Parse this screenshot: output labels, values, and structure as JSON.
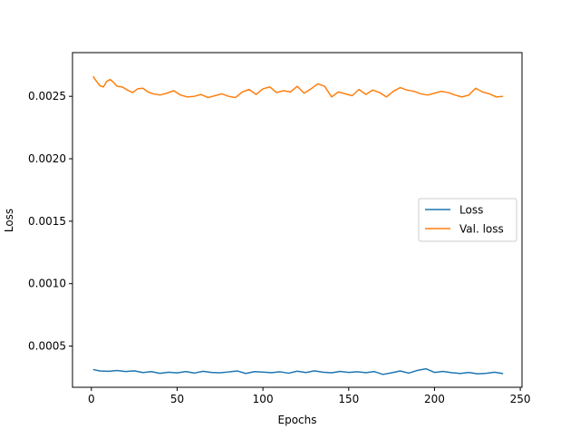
{
  "chart_data": {
    "type": "line",
    "title": "",
    "xlabel": "Epochs",
    "ylabel": "Loss",
    "xlim": [
      -11,
      251
    ],
    "ylim": [
      0.00017,
      0.00285
    ],
    "xticks": [
      0,
      50,
      100,
      150,
      200,
      250
    ],
    "xtick_labels": [
      "0",
      "50",
      "100",
      "150",
      "200",
      "250"
    ],
    "yticks": [
      0.0005,
      0.001,
      0.0015,
      0.002,
      0.0025
    ],
    "ytick_labels": [
      "0.0005",
      "0.0010",
      "0.0015",
      "0.0020",
      "0.0025"
    ],
    "grid": false,
    "legend": {
      "position": "center-right",
      "entries": [
        "Loss",
        "Val. loss"
      ]
    },
    "colors": {
      "Loss": "#1f77b4",
      "Val. loss": "#ff7f0e",
      "axis": "#000000"
    },
    "series": [
      {
        "name": "Loss",
        "x": [
          1,
          5,
          10,
          15,
          20,
          25,
          30,
          35,
          40,
          45,
          50,
          55,
          60,
          65,
          70,
          75,
          80,
          85,
          90,
          95,
          100,
          105,
          110,
          115,
          120,
          125,
          130,
          135,
          140,
          145,
          150,
          155,
          160,
          165,
          170,
          175,
          180,
          185,
          190,
          195,
          200,
          205,
          210,
          215,
          220,
          225,
          230,
          235,
          240
        ],
        "y": [
          0.000312,
          0.000301,
          0.000298,
          0.000304,
          0.000296,
          0.000302,
          0.000288,
          0.000295,
          0.000282,
          0.000291,
          0.000285,
          0.000296,
          0.000284,
          0.000298,
          0.000289,
          0.000286,
          0.000293,
          0.000301,
          0.000281,
          0.000295,
          0.000292,
          0.000287,
          0.000294,
          0.000283,
          0.000299,
          0.000288,
          0.000302,
          0.000291,
          0.000286,
          0.000297,
          0.000289,
          0.000294,
          0.000287,
          0.000296,
          0.000273,
          0.000286,
          0.000301,
          0.000284,
          0.000305,
          0.000318,
          0.000289,
          0.000297,
          0.000287,
          0.000281,
          0.000289,
          0.000278,
          0.000282,
          0.000291,
          0.00028
        ]
      },
      {
        "name": "Val. loss",
        "x": [
          1,
          3,
          5,
          7,
          9,
          11,
          13,
          15,
          18,
          21,
          24,
          27,
          30,
          33,
          36,
          40,
          44,
          48,
          52,
          56,
          60,
          64,
          68,
          72,
          76,
          80,
          84,
          88,
          92,
          96,
          100,
          104,
          108,
          112,
          116,
          120,
          124,
          128,
          132,
          136,
          140,
          144,
          148,
          152,
          156,
          160,
          164,
          168,
          172,
          176,
          180,
          184,
          188,
          192,
          196,
          200,
          204,
          208,
          212,
          216,
          220,
          224,
          228,
          232,
          236,
          240
        ],
        "y": [
          0.00266,
          0.00262,
          0.002585,
          0.002575,
          0.00262,
          0.002635,
          0.00261,
          0.00258,
          0.002575,
          0.00255,
          0.00253,
          0.00256,
          0.002565,
          0.002535,
          0.00252,
          0.00251,
          0.002525,
          0.002545,
          0.00251,
          0.002495,
          0.0025,
          0.002515,
          0.00249,
          0.002505,
          0.00252,
          0.0025,
          0.00249,
          0.002535,
          0.002555,
          0.002515,
          0.00256,
          0.002575,
          0.00253,
          0.002545,
          0.002535,
          0.00258,
          0.002525,
          0.00256,
          0.0026,
          0.00258,
          0.002495,
          0.002535,
          0.00252,
          0.002505,
          0.002555,
          0.002515,
          0.00255,
          0.00253,
          0.002495,
          0.00254,
          0.00257,
          0.00255,
          0.00254,
          0.00252,
          0.00251,
          0.002525,
          0.00254,
          0.00253,
          0.00251,
          0.002495,
          0.00251,
          0.002565,
          0.002535,
          0.00252,
          0.002495,
          0.0025
        ]
      }
    ]
  }
}
